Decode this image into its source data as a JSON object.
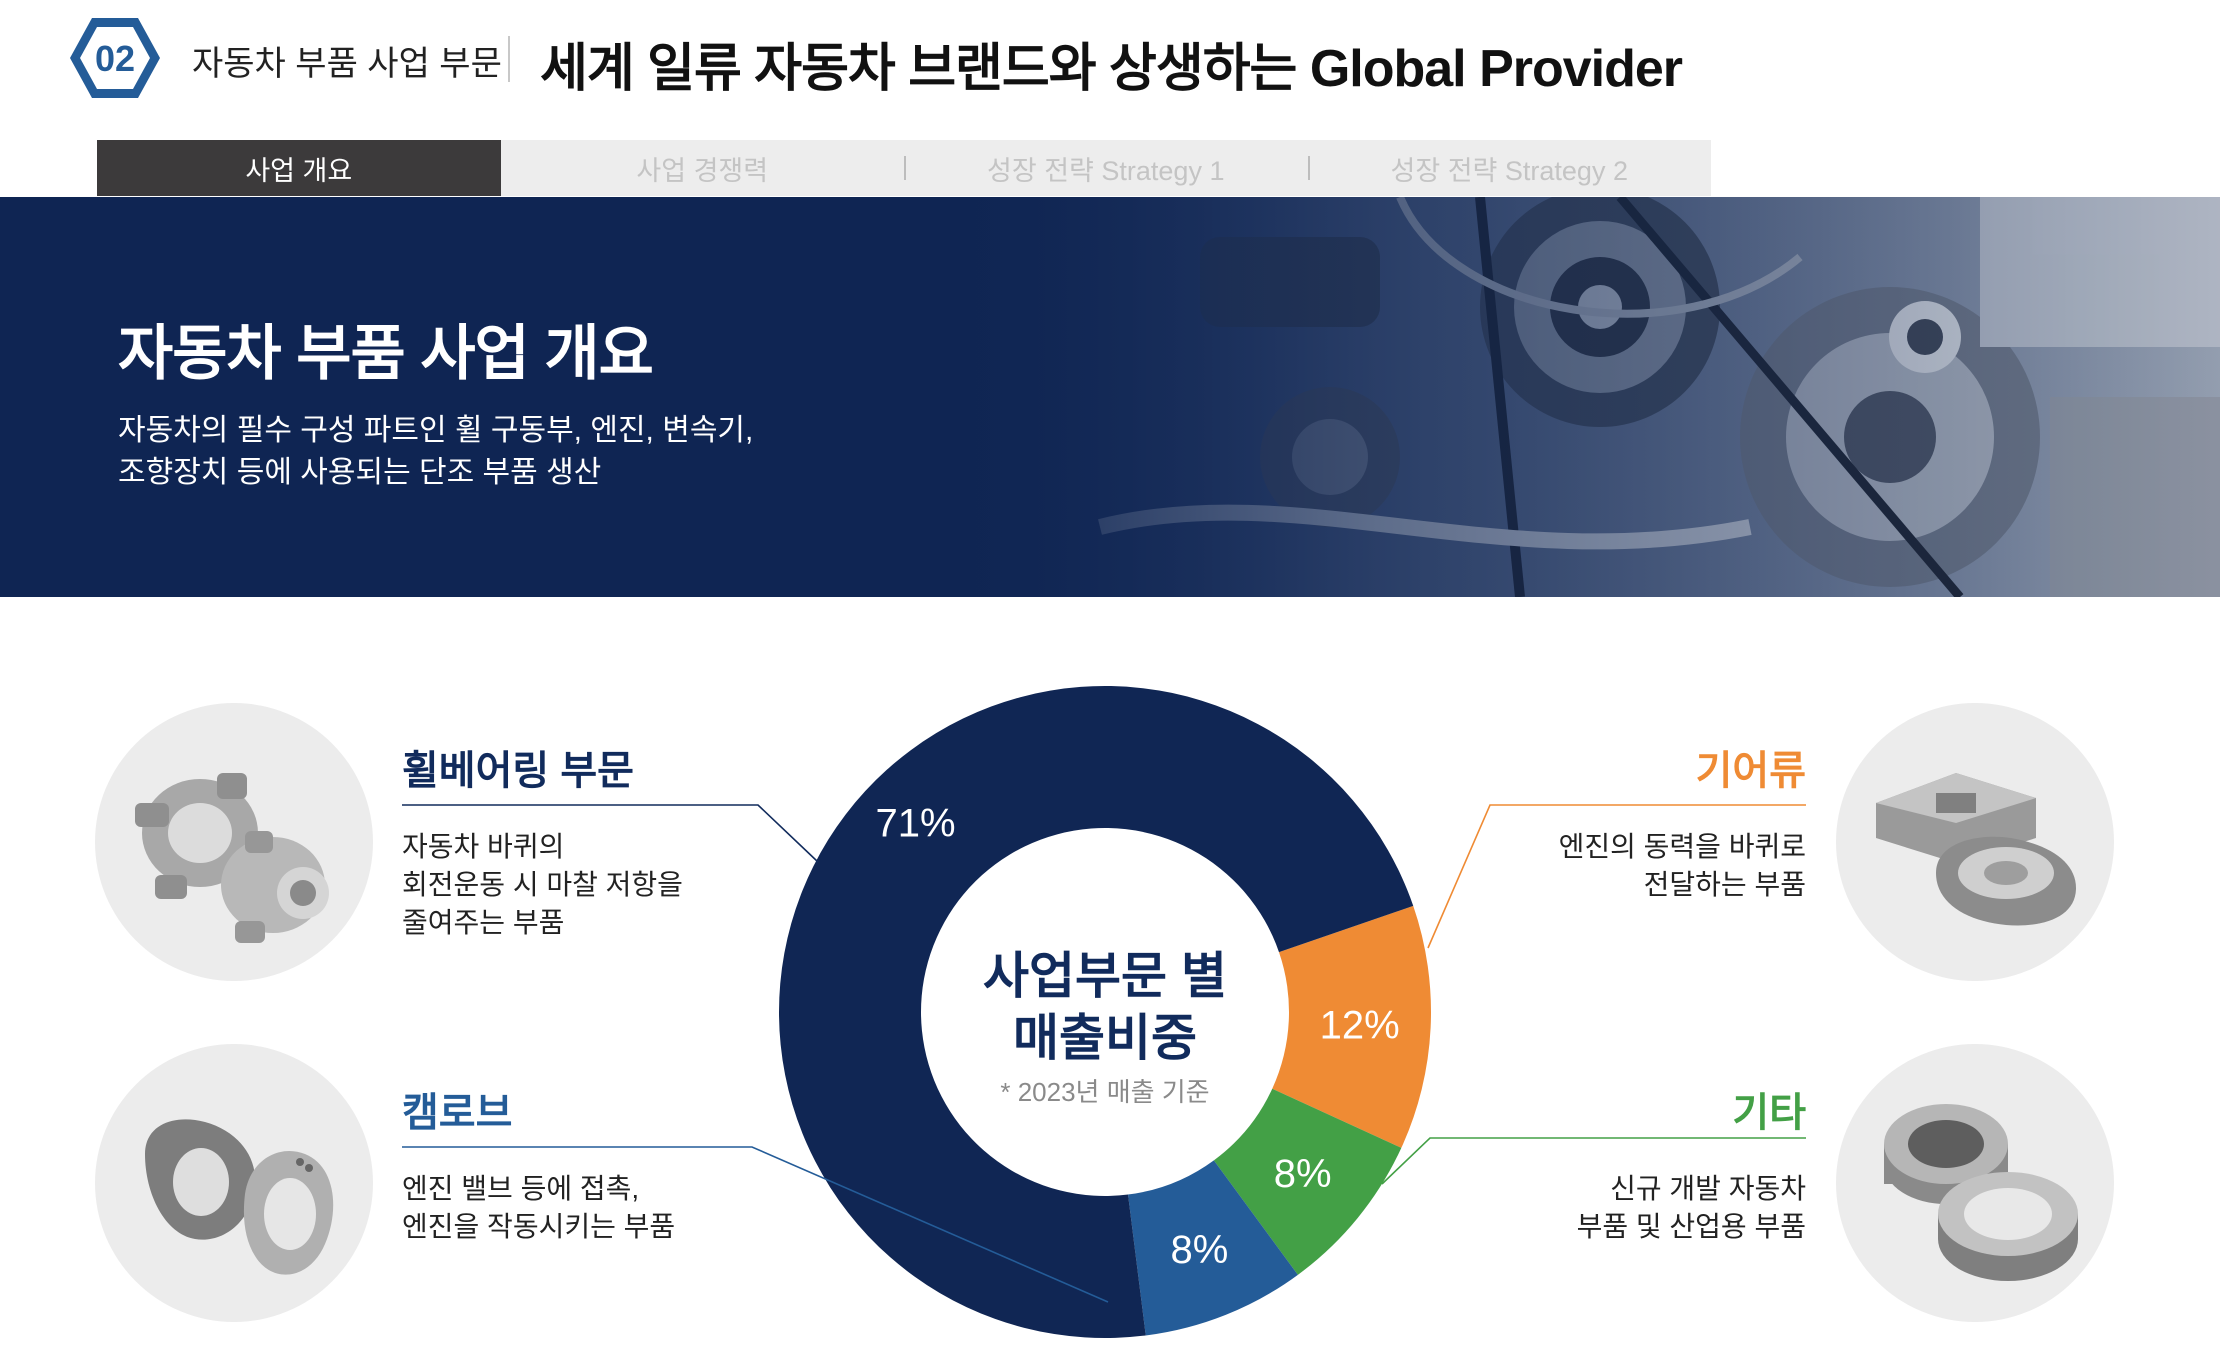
{
  "header": {
    "number": "02",
    "section": "자동차 부품 사업 부문",
    "headline": "세계 일류 자동차 브랜드와 상생하는 Global Provider"
  },
  "tabs": [
    {
      "label": "사업 개요",
      "active": true
    },
    {
      "label": "사업 경쟁력",
      "active": false
    },
    {
      "label": "성장 전략 Strategy 1",
      "active": false
    },
    {
      "label": "성장 전략 Strategy 2",
      "active": false
    }
  ],
  "banner": {
    "title": "자동차 부품 사업 개요",
    "line1": "자동차의 필수 구성 파트인 휠 구동부, 엔진, 변속기,",
    "line2": "조향장치 등에 사용되는 단조 부품 생산"
  },
  "segments": {
    "wheel": {
      "title": "휠베어링 부문",
      "desc": [
        "자동차 바퀴의",
        "회전운동 시 마찰 저항을",
        "줄여주는 부품"
      ]
    },
    "cam": {
      "title": "캠로브",
      "desc": [
        "엔진 밸브 등에 접촉,",
        "엔진을 작동시키는 부품"
      ]
    },
    "gear": {
      "title": "기어류",
      "desc": [
        "엔진의 동력을 바퀴로",
        "전달하는 부품"
      ]
    },
    "other": {
      "title": "기타",
      "desc": [
        "신규 개발 자동차",
        "부품 및 산업용 부품"
      ]
    }
  },
  "chart_data": {
    "type": "pie",
    "title": "사업부문 별 매출비중",
    "title_lines": [
      "사업부문 별",
      "매출비중"
    ],
    "note": "* 2023년 매출 기준",
    "slices": [
      {
        "label": "휠베어링 부문",
        "value": 71,
        "display": "71%",
        "color": "#102654"
      },
      {
        "label": "기어류",
        "value": 12,
        "display": "12%",
        "color": "#ef8b34"
      },
      {
        "label": "기타",
        "value": 8,
        "display": "8%",
        "color": "#43a046"
      },
      {
        "label": "캠로브",
        "value": 8,
        "display": "8%",
        "color": "#245c98"
      }
    ]
  },
  "colors": {
    "navy": "#0f2553",
    "blue": "#245c98",
    "orange": "#ef8b34",
    "green": "#43a046",
    "tab_active": "#3c3a3b"
  }
}
